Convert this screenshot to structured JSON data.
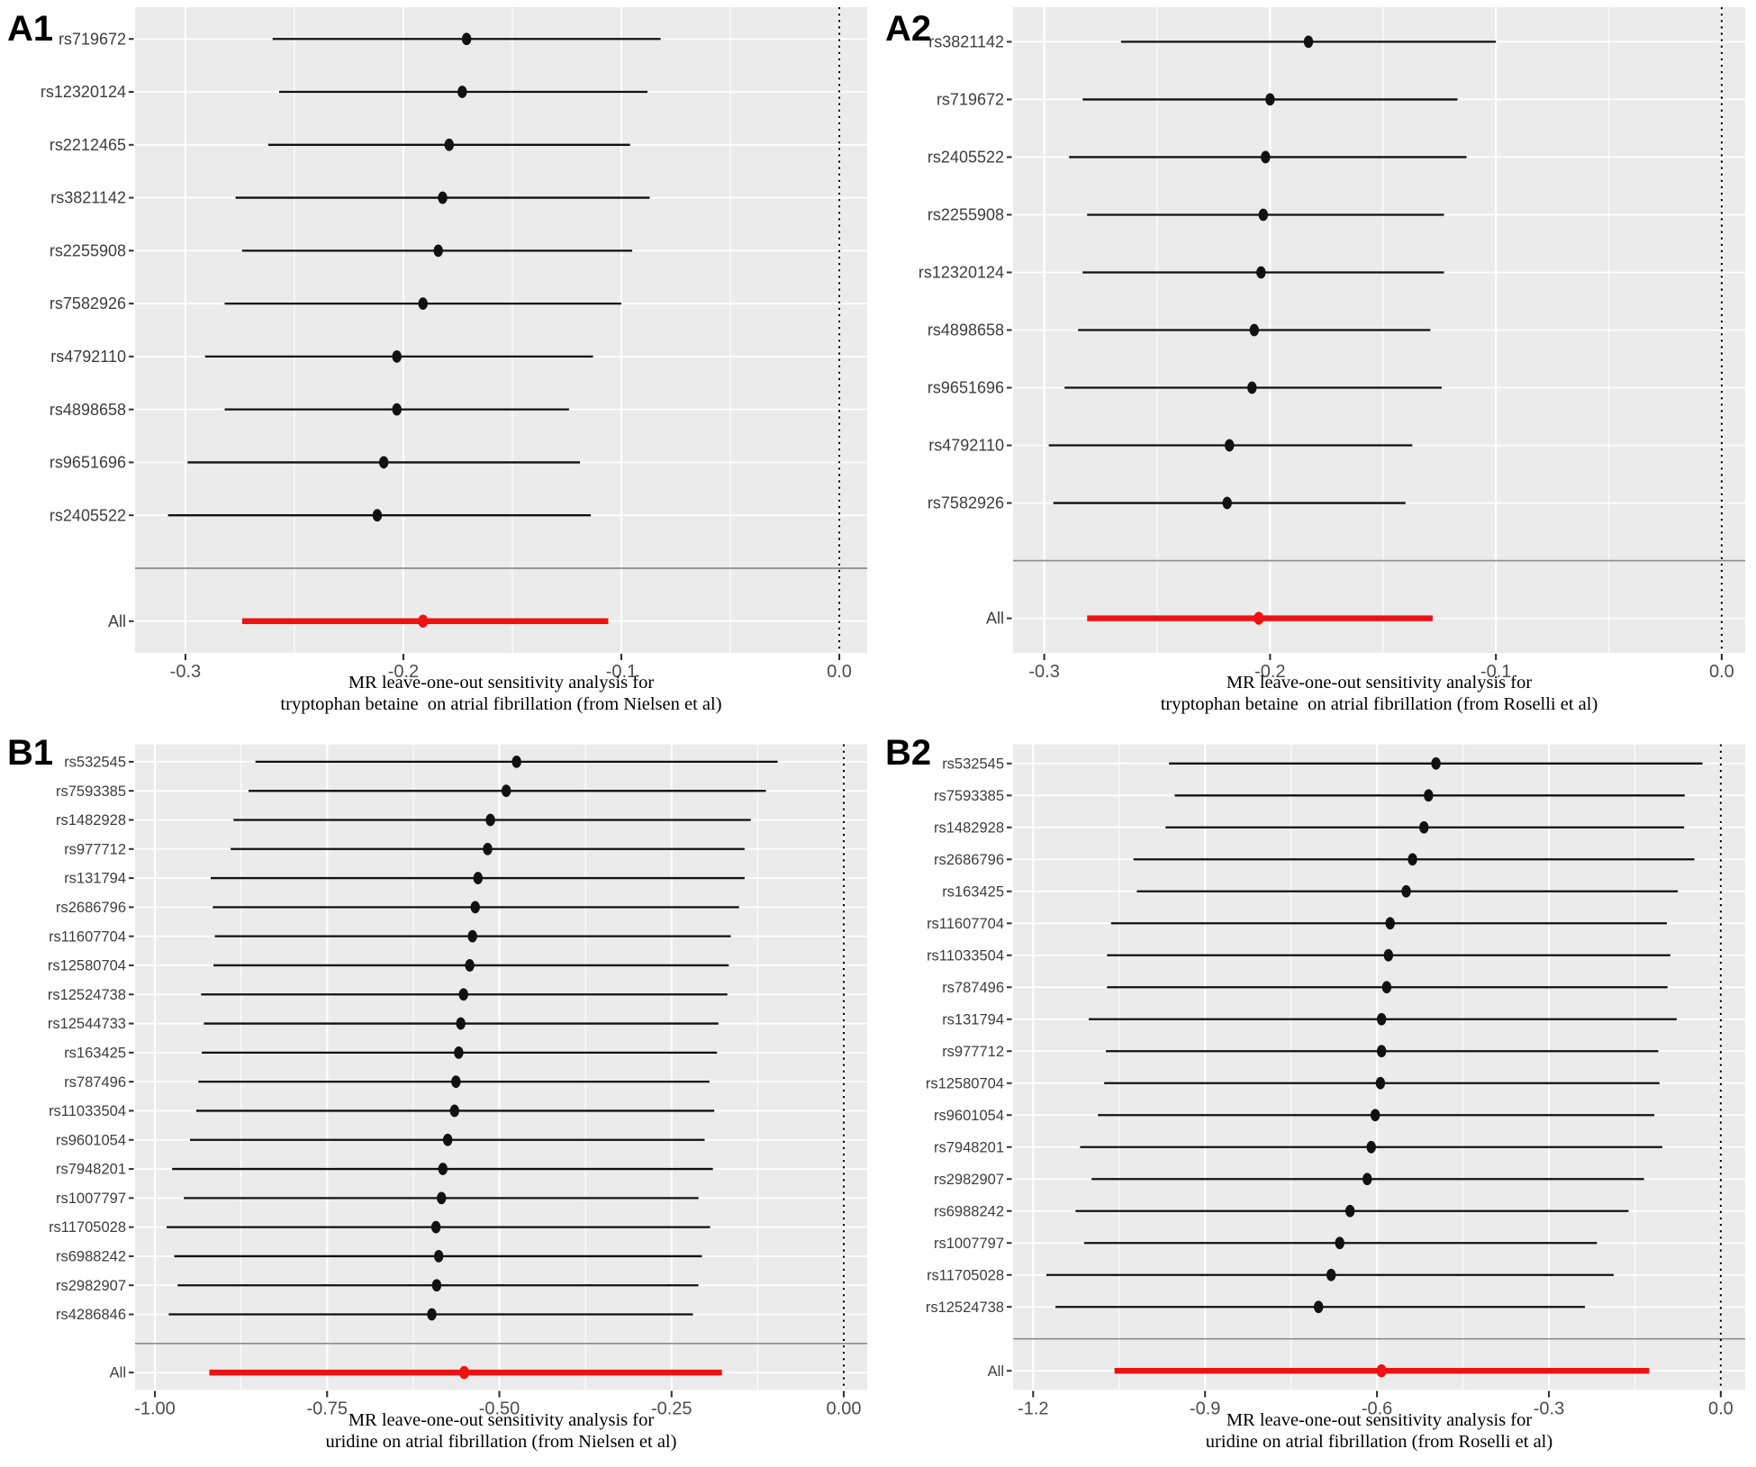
{
  "figure_title": "MR leave-one-out sensitivity analysis forest plots",
  "style": {
    "panel_bg": "#ebebeb",
    "grid_color": "#ffffff",
    "point_color": "#111111",
    "ci_color": "#111111",
    "all_color": "#ee1111",
    "separator_color": "#8a8a8a",
    "axis_text_color": "#4d4d4d",
    "y_label_color": "#3d3d3d",
    "zero_line_color": "#000000"
  },
  "chart_data": [
    {
      "id": "A1",
      "panel_label": "A1",
      "type": "scatter",
      "subtype": "forest-leave-one-out",
      "grid": true,
      "legend": false,
      "title_lines": [
        "MR leave-one-out sensitivity analysis for",
        "tryptophan betaine  on atrial fibrillation (from Nielsen et al)"
      ],
      "xlim": [
        -0.3231,
        0.0128
      ],
      "zero_line": 0,
      "x_ticks": {
        "values": [
          -0.3,
          -0.2,
          -0.1,
          0.0
        ],
        "labels": [
          "-0.3",
          "-0.2",
          "-0.1",
          "0.0"
        ]
      },
      "rows": [
        {
          "label": "rs719672",
          "est": -0.171,
          "lo": -0.26,
          "hi": -0.082
        },
        {
          "label": "rs12320124",
          "est": -0.173,
          "lo": -0.257,
          "hi": -0.088
        },
        {
          "label": "rs2212465",
          "est": -0.179,
          "lo": -0.262,
          "hi": -0.096
        },
        {
          "label": "rs3821142",
          "est": -0.182,
          "lo": -0.277,
          "hi": -0.087
        },
        {
          "label": "rs2255908",
          "est": -0.184,
          "lo": -0.274,
          "hi": -0.095
        },
        {
          "label": "rs7582926",
          "est": -0.191,
          "lo": -0.282,
          "hi": -0.1
        },
        {
          "label": "rs4792110",
          "est": -0.203,
          "lo": -0.291,
          "hi": -0.113
        },
        {
          "label": "rs4898658",
          "est": -0.203,
          "lo": -0.282,
          "hi": -0.124
        },
        {
          "label": "rs9651696",
          "est": -0.209,
          "lo": -0.299,
          "hi": -0.119
        },
        {
          "label": "rs2405522",
          "est": -0.212,
          "lo": -0.308,
          "hi": -0.114
        }
      ],
      "all": {
        "label": "All",
        "est": -0.191,
        "lo": -0.274,
        "hi": -0.106
      }
    },
    {
      "id": "A2",
      "panel_label": "A2",
      "type": "scatter",
      "subtype": "forest-leave-one-out",
      "grid": true,
      "legend": false,
      "title_lines": [
        "MR leave-one-out sensitivity analysis for",
        "tryptophan betaine  on atrial fibrillation (from Roselli et al)"
      ],
      "xlim": [
        -0.3138,
        0.0104
      ],
      "zero_line": 0,
      "x_ticks": {
        "values": [
          -0.3,
          -0.2,
          -0.1,
          0.0
        ],
        "labels": [
          "-0.3",
          "-0.2",
          "-0.1",
          "0.0"
        ]
      },
      "rows": [
        {
          "label": "rs3821142",
          "est": -0.183,
          "lo": -0.266,
          "hi": -0.1
        },
        {
          "label": "rs719672",
          "est": -0.2,
          "lo": -0.283,
          "hi": -0.117
        },
        {
          "label": "rs2405522",
          "est": -0.202,
          "lo": -0.289,
          "hi": -0.113
        },
        {
          "label": "rs2255908",
          "est": -0.203,
          "lo": -0.281,
          "hi": -0.123
        },
        {
          "label": "rs12320124",
          "est": -0.204,
          "lo": -0.283,
          "hi": -0.123
        },
        {
          "label": "rs4898658",
          "est": -0.207,
          "lo": -0.285,
          "hi": -0.129
        },
        {
          "label": "rs9651696",
          "est": -0.208,
          "lo": -0.291,
          "hi": -0.124
        },
        {
          "label": "rs4792110",
          "est": -0.218,
          "lo": -0.298,
          "hi": -0.137
        },
        {
          "label": "rs7582926",
          "est": -0.219,
          "lo": -0.296,
          "hi": -0.14
        }
      ],
      "all": {
        "label": "All",
        "est": -0.205,
        "lo": -0.281,
        "hi": -0.128
      }
    },
    {
      "id": "B1",
      "panel_label": "B1",
      "type": "scatter",
      "subtype": "forest-leave-one-out",
      "grid": true,
      "legend": false,
      "title_lines": [
        "MR leave-one-out sensitivity analysis for",
        "uridine on atrial fibrillation (from Nielsen et al)"
      ],
      "xlim": [
        -1.0288,
        0.034
      ],
      "zero_line": 0,
      "x_ticks": {
        "values": [
          -1.0,
          -0.75,
          -0.5,
          -0.25,
          0.0
        ],
        "labels": [
          "-1.00",
          "-0.75",
          "-0.50",
          "-0.25",
          "0.00"
        ]
      },
      "rows": [
        {
          "label": "rs532545",
          "est": -0.475,
          "lo": -0.854,
          "hi": -0.096
        },
        {
          "label": "rs7593385",
          "est": -0.49,
          "lo": -0.864,
          "hi": -0.113
        },
        {
          "label": "rs1482928",
          "est": -0.513,
          "lo": -0.886,
          "hi": -0.135
        },
        {
          "label": "rs977712",
          "est": -0.517,
          "lo": -0.89,
          "hi": -0.144
        },
        {
          "label": "rs131794",
          "est": -0.531,
          "lo": -0.919,
          "hi": -0.144
        },
        {
          "label": "rs2686796",
          "est": -0.535,
          "lo": -0.916,
          "hi": -0.152
        },
        {
          "label": "rs11607704",
          "est": -0.539,
          "lo": -0.913,
          "hi": -0.164
        },
        {
          "label": "rs12580704",
          "est": -0.543,
          "lo": -0.915,
          "hi": -0.167
        },
        {
          "label": "rs12524738",
          "est": -0.552,
          "lo": -0.933,
          "hi": -0.169
        },
        {
          "label": "rs12544733",
          "est": -0.556,
          "lo": -0.929,
          "hi": -0.182
        },
        {
          "label": "rs163425",
          "est": -0.559,
          "lo": -0.932,
          "hi": -0.184
        },
        {
          "label": "rs787496",
          "est": -0.563,
          "lo": -0.937,
          "hi": -0.195
        },
        {
          "label": "rs11033504",
          "est": -0.565,
          "lo": -0.94,
          "hi": -0.188
        },
        {
          "label": "rs9601054",
          "est": -0.575,
          "lo": -0.949,
          "hi": -0.202
        },
        {
          "label": "rs7948201",
          "est": -0.582,
          "lo": -0.975,
          "hi": -0.19
        },
        {
          "label": "rs1007797",
          "est": -0.584,
          "lo": -0.958,
          "hi": -0.211
        },
        {
          "label": "rs11705028",
          "est": -0.592,
          "lo": -0.983,
          "hi": -0.194
        },
        {
          "label": "rs6988242",
          "est": -0.588,
          "lo": -0.972,
          "hi": -0.206
        },
        {
          "label": "rs2982907",
          "est": -0.591,
          "lo": -0.967,
          "hi": -0.211
        },
        {
          "label": "rs4286846",
          "est": -0.598,
          "lo": -0.98,
          "hi": -0.219
        }
      ],
      "all": {
        "label": "All",
        "est": -0.551,
        "lo": -0.921,
        "hi": -0.177
      }
    },
    {
      "id": "B2",
      "panel_label": "B2",
      "type": "scatter",
      "subtype": "forest-leave-one-out",
      "grid": true,
      "legend": false,
      "title_lines": [
        "MR leave-one-out sensitivity analysis for",
        "uridine on atrial fibrillation (from Roselli et al)"
      ],
      "xlim": [
        -1.235,
        0.0426
      ],
      "zero_line": 0,
      "x_ticks": {
        "values": [
          -1.2,
          -0.9,
          -0.6,
          -0.3,
          0.0
        ],
        "labels": [
          "-1.2",
          "-0.9",
          "-0.6",
          "-0.3",
          "0.0"
        ]
      },
      "rows": [
        {
          "label": "rs532545",
          "est": -0.497,
          "lo": -0.963,
          "hi": -0.032
        },
        {
          "label": "rs7593385",
          "est": -0.51,
          "lo": -0.953,
          "hi": -0.063
        },
        {
          "label": "rs1482928",
          "est": -0.518,
          "lo": -0.969,
          "hi": -0.064
        },
        {
          "label": "rs2686796",
          "est": -0.538,
          "lo": -1.025,
          "hi": -0.046
        },
        {
          "label": "rs163425",
          "est": -0.549,
          "lo": -1.019,
          "hi": -0.075
        },
        {
          "label": "rs11607704",
          "est": -0.577,
          "lo": -1.064,
          "hi": -0.094
        },
        {
          "label": "rs11033504",
          "est": -0.58,
          "lo": -1.071,
          "hi": -0.088
        },
        {
          "label": "rs787496",
          "est": -0.583,
          "lo": -1.071,
          "hi": -0.093
        },
        {
          "label": "rs131794",
          "est": -0.592,
          "lo": -1.103,
          "hi": -0.077
        },
        {
          "label": "rs977712",
          "est": -0.592,
          "lo": -1.073,
          "hi": -0.109
        },
        {
          "label": "rs12580704",
          "est": -0.594,
          "lo": -1.076,
          "hi": -0.107
        },
        {
          "label": "rs9601054",
          "est": -0.603,
          "lo": -1.087,
          "hi": -0.116
        },
        {
          "label": "rs7948201",
          "est": -0.61,
          "lo": -1.118,
          "hi": -0.102
        },
        {
          "label": "rs2982907",
          "est": -0.617,
          "lo": -1.098,
          "hi": -0.134
        },
        {
          "label": "rs6988242",
          "est": -0.647,
          "lo": -1.126,
          "hi": -0.161
        },
        {
          "label": "rs1007797",
          "est": -0.665,
          "lo": -1.111,
          "hi": -0.216
        },
        {
          "label": "rs11705028",
          "est": -0.68,
          "lo": -1.177,
          "hi": -0.187
        },
        {
          "label": "rs12524738",
          "est": -0.702,
          "lo": -1.161,
          "hi": -0.237
        }
      ],
      "all": {
        "label": "All",
        "est": -0.592,
        "lo": -1.058,
        "hi": -0.125
      }
    }
  ]
}
